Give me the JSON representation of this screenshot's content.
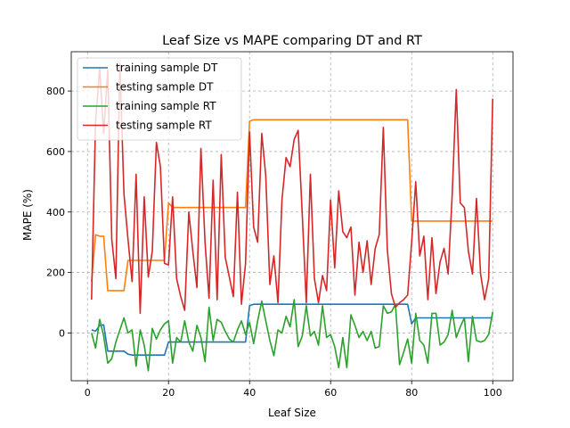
{
  "chart_data": {
    "type": "line",
    "title": "Leaf Size vs MAPE comparing DT and RT",
    "xlabel": "Leaf Size",
    "ylabel": "MAPE (%)",
    "xlim": [
      -4,
      105
    ],
    "ylim": [
      -158,
      930
    ],
    "xticks": [
      0,
      20,
      40,
      60,
      80,
      100
    ],
    "yticks": [
      0,
      200,
      400,
      600,
      800
    ],
    "grid": true,
    "legend_position": "top-left",
    "x": [
      1,
      2,
      3,
      4,
      5,
      6,
      7,
      8,
      9,
      10,
      11,
      12,
      13,
      14,
      15,
      16,
      17,
      18,
      19,
      20,
      21,
      22,
      23,
      24,
      25,
      26,
      27,
      28,
      29,
      30,
      31,
      32,
      33,
      34,
      35,
      36,
      37,
      38,
      39,
      40,
      41,
      42,
      43,
      44,
      45,
      46,
      47,
      48,
      49,
      50,
      51,
      52,
      53,
      54,
      55,
      56,
      57,
      58,
      59,
      60,
      61,
      62,
      63,
      64,
      65,
      66,
      67,
      68,
      69,
      70,
      71,
      72,
      73,
      74,
      75,
      76,
      77,
      78,
      79,
      80,
      81,
      82,
      83,
      84,
      85,
      86,
      87,
      88,
      89,
      90,
      91,
      92,
      93,
      94,
      95,
      96,
      97,
      98,
      99,
      100
    ],
    "series": [
      {
        "name": "training sample DT",
        "color": "#1f77b4",
        "values": [
          10,
          6,
          25,
          27,
          -60,
          -60,
          -60,
          -60,
          -60,
          -70,
          -73,
          -73,
          -73,
          -73,
          -73,
          -73,
          -73,
          -73,
          -73,
          -30,
          -30,
          -30,
          -30,
          -30,
          -30,
          -30,
          -30,
          -30,
          -30,
          -30,
          -30,
          -30,
          -30,
          -30,
          -30,
          -30,
          -30,
          -30,
          -30,
          90,
          95,
          95,
          95,
          95,
          95,
          95,
          95,
          95,
          95,
          95,
          95,
          95,
          95,
          95,
          95,
          95,
          95,
          95,
          95,
          95,
          95,
          95,
          95,
          95,
          95,
          95,
          95,
          95,
          95,
          95,
          95,
          95,
          95,
          95,
          95,
          95,
          95,
          95,
          95,
          30,
          50,
          50,
          50,
          50,
          50,
          50,
          50,
          50,
          50,
          50,
          50,
          50,
          50,
          50,
          50,
          50,
          50,
          50,
          50,
          50
        ]
      },
      {
        "name": "testing sample DT",
        "color": "#ff7f0e",
        "values": [
          170,
          325,
          320,
          320,
          140,
          140,
          140,
          140,
          140,
          240,
          240,
          240,
          240,
          240,
          240,
          240,
          240,
          240,
          240,
          430,
          415,
          415,
          415,
          415,
          415,
          415,
          415,
          415,
          415,
          415,
          415,
          415,
          415,
          415,
          415,
          415,
          415,
          415,
          415,
          700,
          705,
          705,
          705,
          705,
          705,
          705,
          705,
          705,
          705,
          705,
          705,
          705,
          705,
          705,
          705,
          705,
          705,
          705,
          705,
          705,
          705,
          705,
          705,
          705,
          705,
          705,
          705,
          705,
          705,
          705,
          705,
          705,
          705,
          705,
          705,
          705,
          705,
          705,
          705,
          370,
          370,
          370,
          370,
          370,
          370,
          370,
          370,
          370,
          370,
          370,
          370,
          370,
          370,
          370,
          370,
          370,
          370,
          370,
          370,
          370
        ]
      },
      {
        "name": "training sample RT",
        "color": "#2ca02c",
        "values": [
          0,
          -50,
          45,
          -10,
          -100,
          -85,
          -30,
          10,
          50,
          0,
          10,
          -110,
          10,
          -40,
          -125,
          15,
          -20,
          10,
          30,
          40,
          -100,
          -15,
          -30,
          40,
          -30,
          -60,
          25,
          -15,
          -95,
          85,
          -25,
          45,
          35,
          5,
          -20,
          -30,
          10,
          40,
          -5,
          35,
          -35,
          40,
          105,
          40,
          -25,
          -75,
          10,
          0,
          55,
          20,
          110,
          -45,
          -10,
          90,
          -10,
          5,
          -40,
          90,
          -15,
          -5,
          -45,
          -115,
          -15,
          -115,
          60,
          25,
          -15,
          5,
          -25,
          5,
          -50,
          -45,
          90,
          65,
          70,
          95,
          -105,
          -65,
          -20,
          -100,
          65,
          -25,
          -40,
          -100,
          65,
          65,
          -40,
          -30,
          -5,
          75,
          -15,
          20,
          50,
          -95,
          55,
          -25,
          -30,
          -25,
          -5,
          70
        ]
      },
      {
        "name": "testing sample RT",
        "color": "#d62728",
        "values": [
          110,
          700,
          875,
          660,
          870,
          310,
          180,
          890,
          460,
          310,
          170,
          525,
          65,
          450,
          185,
          270,
          630,
          550,
          230,
          225,
          450,
          180,
          120,
          75,
          400,
          270,
          150,
          610,
          300,
          115,
          505,
          110,
          590,
          250,
          185,
          120,
          465,
          95,
          230,
          665,
          350,
          300,
          660,
          520,
          160,
          255,
          100,
          440,
          580,
          550,
          640,
          670,
          390,
          100,
          525,
          180,
          100,
          190,
          140,
          440,
          215,
          470,
          335,
          315,
          350,
          125,
          300,
          200,
          305,
          160,
          280,
          325,
          680,
          275,
          130,
          85,
          100,
          110,
          125,
          300,
          500,
          255,
          320,
          110,
          315,
          130,
          235,
          280,
          195,
          455,
          805,
          430,
          415,
          270,
          195,
          445,
          195,
          110,
          180,
          775
        ]
      }
    ]
  }
}
